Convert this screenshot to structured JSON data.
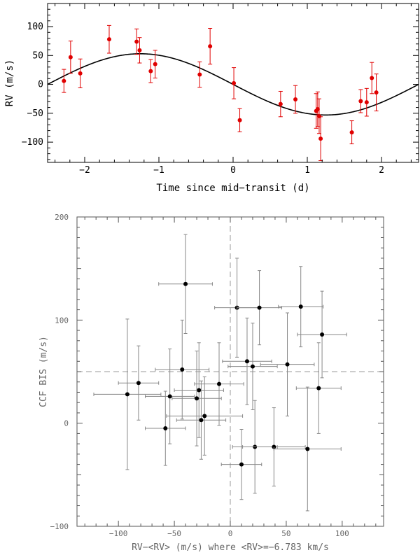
{
  "chart_data": [
    {
      "type": "scatter",
      "title": "",
      "xlabel": "Time since mid−transit (d)",
      "ylabel": "RV (m/s)",
      "xlim": [
        -2.5,
        2.5
      ],
      "ylim": [
        -135,
        140
      ],
      "xticks": [
        -2,
        -1,
        0,
        1,
        2
      ],
      "xtick_labels": [
        "−2",
        "−1",
        "0",
        "1",
        "2"
      ],
      "yticks": [
        -100,
        -50,
        0,
        50,
        100
      ],
      "ytick_labels": [
        "−100",
        "−50",
        "0",
        "50",
        "100"
      ],
      "model": {
        "type": "sinusoid",
        "amplitude": 53,
        "period": 5.0,
        "zero_crossing": 0.0,
        "sign": -1
      },
      "point_color": "#e00000",
      "points": [
        {
          "x": -2.28,
          "y": 6,
          "err": 20
        },
        {
          "x": -2.19,
          "y": 47,
          "err": 28
        },
        {
          "x": -2.06,
          "y": 19,
          "err": 25
        },
        {
          "x": -1.67,
          "y": 78,
          "err": 24
        },
        {
          "x": -1.3,
          "y": 74,
          "err": 22
        },
        {
          "x": -1.26,
          "y": 59,
          "err": 22
        },
        {
          "x": -1.11,
          "y": 23,
          "err": 20
        },
        {
          "x": -1.05,
          "y": 35,
          "err": 24
        },
        {
          "x": -0.45,
          "y": 17,
          "err": 22
        },
        {
          "x": -0.31,
          "y": 66,
          "err": 31
        },
        {
          "x": 0.01,
          "y": 2,
          "err": 27
        },
        {
          "x": 0.09,
          "y": -62,
          "err": 20
        },
        {
          "x": 0.64,
          "y": -34,
          "err": 22
        },
        {
          "x": 0.84,
          "y": -26,
          "err": 24
        },
        {
          "x": 1.12,
          "y": -46,
          "err": 30
        },
        {
          "x": 1.14,
          "y": -43,
          "err": 30
        },
        {
          "x": 1.16,
          "y": -55,
          "err": 30
        },
        {
          "x": 1.18,
          "y": -94,
          "err": 38
        },
        {
          "x": 1.6,
          "y": -83,
          "err": 20
        },
        {
          "x": 1.72,
          "y": -29,
          "err": 20
        },
        {
          "x": 1.8,
          "y": -31,
          "err": 24
        },
        {
          "x": 1.87,
          "y": 11,
          "err": 27
        },
        {
          "x": 1.93,
          "y": -14,
          "err": 32
        }
      ]
    },
    {
      "type": "scatter",
      "title": "",
      "xlabel": "RV−<RV> (m/s) where <RV>=−6.783 km/s",
      "ylabel": "CCF BIS (m/s)",
      "xlim": [
        -137,
        137
      ],
      "ylim": [
        -100,
        200
      ],
      "xticks": [
        -100,
        -50,
        0,
        50,
        100
      ],
      "xtick_labels": [
        "−100",
        "−50",
        "0",
        "50",
        "100"
      ],
      "yticks": [
        -100,
        0,
        100,
        200
      ],
      "ytick_labels": [
        "−100",
        "0",
        "100",
        "200"
      ],
      "reference_lines": {
        "x": 0,
        "y": 50
      },
      "point_color": "#000000",
      "points": [
        {
          "x": -40,
          "y": 135,
          "xerr": 24,
          "yerr": 48
        },
        {
          "x": 6,
          "y": 112,
          "xerr": 20,
          "yerr": 48
        },
        {
          "x": 26,
          "y": 112,
          "xerr": 20,
          "yerr": 36
        },
        {
          "x": 63,
          "y": 113,
          "xerr": 20,
          "yerr": 39
        },
        {
          "x": 82,
          "y": 86,
          "xerr": 22,
          "yerr": 42
        },
        {
          "x": 15,
          "y": 60,
          "xerr": 22,
          "yerr": 42
        },
        {
          "x": 20,
          "y": 55,
          "xerr": 22,
          "yerr": 42
        },
        {
          "x": 51,
          "y": 57,
          "xerr": 24,
          "yerr": 50
        },
        {
          "x": -43,
          "y": 52,
          "xerr": 24,
          "yerr": 48
        },
        {
          "x": -10,
          "y": 38,
          "xerr": 22,
          "yerr": 40
        },
        {
          "x": -82,
          "y": 39,
          "xerr": 18,
          "yerr": 36
        },
        {
          "x": -92,
          "y": 28,
          "xerr": 30,
          "yerr": 73
        },
        {
          "x": -54,
          "y": 26,
          "xerr": 22,
          "yerr": 46
        },
        {
          "x": -28,
          "y": 32,
          "xerr": 22,
          "yerr": 46
        },
        {
          "x": -30,
          "y": 24,
          "xerr": 22,
          "yerr": 46
        },
        {
          "x": 79,
          "y": 34,
          "xerr": 20,
          "yerr": 44
        },
        {
          "x": -23,
          "y": 7,
          "xerr": 34,
          "yerr": 38
        },
        {
          "x": -26,
          "y": 3,
          "xerr": 22,
          "yerr": 38
        },
        {
          "x": -58,
          "y": -5,
          "xerr": 18,
          "yerr": 36
        },
        {
          "x": 22,
          "y": -23,
          "xerr": 20,
          "yerr": 45
        },
        {
          "x": 39,
          "y": -23,
          "xerr": 28,
          "yerr": 38
        },
        {
          "x": 69,
          "y": -25,
          "xerr": 30,
          "yerr": 60
        },
        {
          "x": 10,
          "y": -40,
          "xerr": 18,
          "yerr": 34
        }
      ]
    }
  ]
}
